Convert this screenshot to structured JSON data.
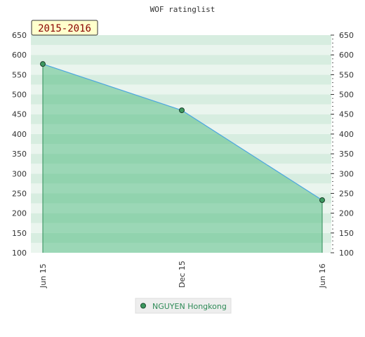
{
  "chart_data": {
    "type": "area",
    "title": "WOF ratinglist",
    "badge": "2015-2016",
    "xlabel": "",
    "ylabel": "",
    "x_ticks": [
      "Jun 15",
      "Dec 15",
      "Jun 16"
    ],
    "y_ticks": [
      100,
      150,
      200,
      250,
      300,
      350,
      400,
      450,
      500,
      550,
      600,
      650
    ],
    "ylim": [
      100,
      650
    ],
    "grid": true,
    "legend_position": "bottom",
    "series": [
      {
        "name": "NGUYEN Hongkong",
        "x": [
          "Jun 15",
          "Dec 15",
          "Jun 16"
        ],
        "values": [
          577,
          460,
          233
        ],
        "color": "#4da6e0",
        "fill": "#3cb371",
        "marker": "#3d9960"
      }
    ]
  }
}
